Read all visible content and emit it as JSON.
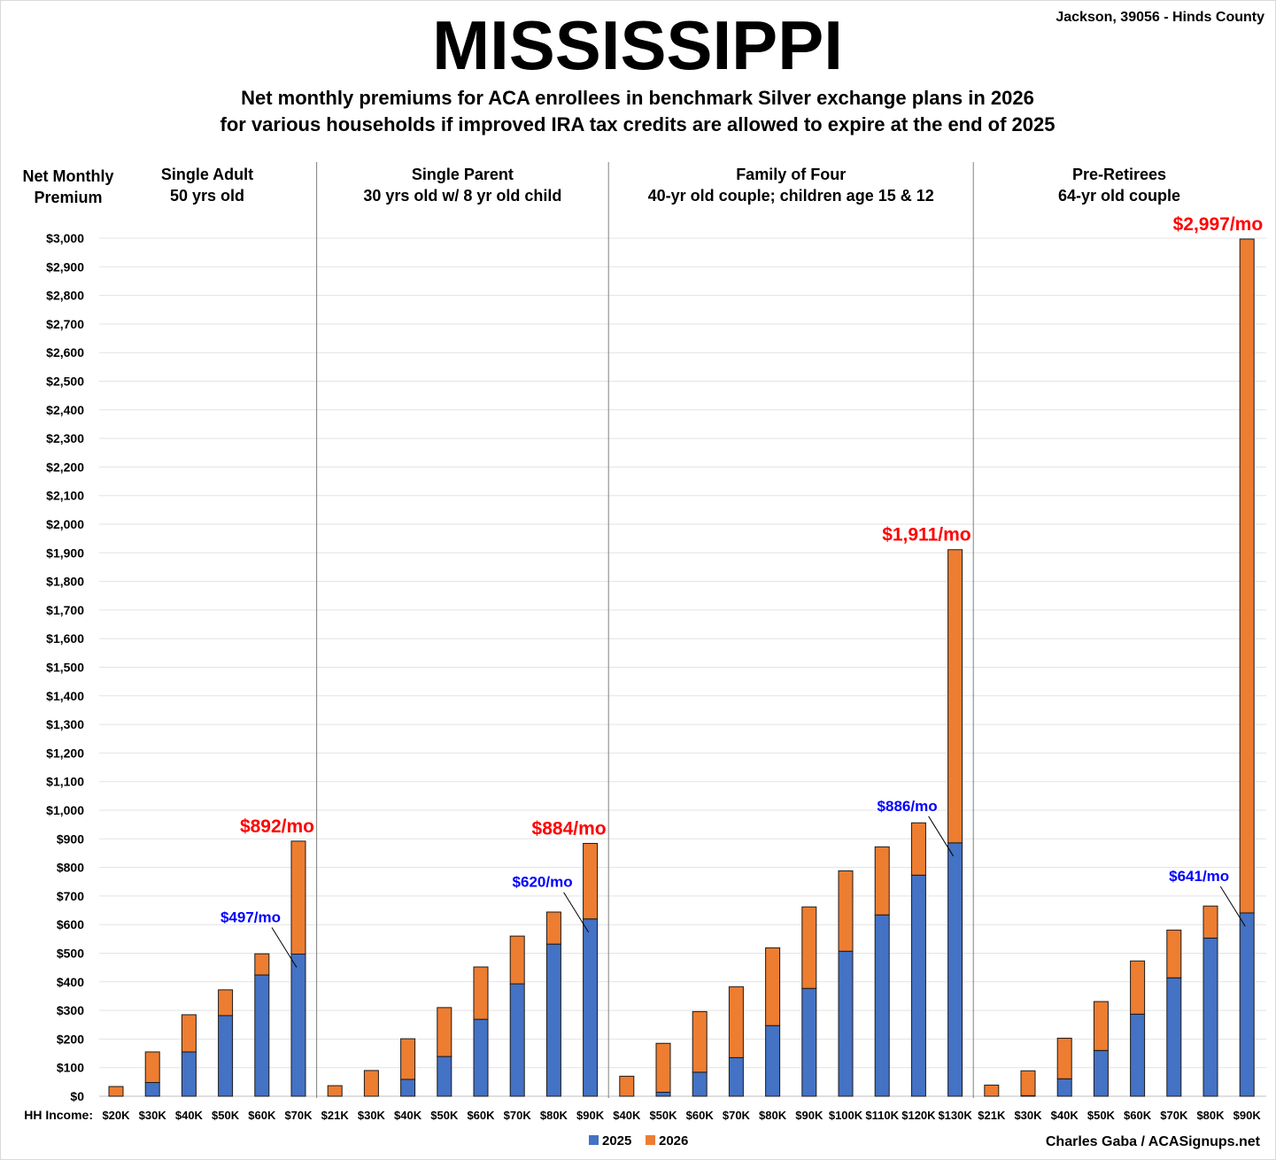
{
  "location": "Jackson, 39056 - Hinds County",
  "chart_data": {
    "type": "bar",
    "stacked": true,
    "title": "MISSISSIPPI",
    "subtitle_lines": [
      "Net monthly premiums for ACA enrollees in benchmark Silver exchange plans in 2026",
      "for various households if improved IRA tax credits are allowed to expire at the end of 2025"
    ],
    "ylabel_lines": [
      "Net Monthly",
      "Premium"
    ],
    "xlabel": "HH Income:",
    "ylim": [
      0,
      3000
    ],
    "ytick_step": 100,
    "grid": true,
    "legend_position": "bottom",
    "colors": {
      "2025": "#4472C4",
      "2026": "#ED7D31",
      "annotation_2026": "#FF0000",
      "annotation_2025": "#0000FF"
    },
    "groups": [
      {
        "title_lines": [
          "Single Adult",
          "50 yrs old"
        ],
        "categories": [
          "$20K",
          "$30K",
          "$40K",
          "$50K",
          "$60K",
          "$70K"
        ],
        "values_2025": [
          0,
          48,
          155,
          282,
          424,
          497
        ],
        "values_2026": [
          34,
          155,
          285,
          372,
          498,
          892
        ]
      },
      {
        "title_lines": [
          "Single Parent",
          "30 yrs old w/ 8 yr old child"
        ],
        "categories": [
          "$21K",
          "$30K",
          "$40K",
          "$50K",
          "$60K",
          "$70K",
          "$80K",
          "$90K"
        ],
        "values_2025": [
          0,
          0,
          59,
          139,
          269,
          393,
          532,
          620
        ],
        "values_2026": [
          37,
          90,
          201,
          310,
          452,
          560,
          644,
          884
        ]
      },
      {
        "title_lines": [
          "Family of Four",
          "40-yr old couple; children age 15 & 12"
        ],
        "categories": [
          "$40K",
          "$50K",
          "$60K",
          "$70K",
          "$80K",
          "$90K",
          "$100K",
          "$110K",
          "$120K",
          "$130K"
        ],
        "values_2025": [
          0,
          14,
          84,
          135,
          247,
          377,
          507,
          634,
          773,
          886
        ],
        "values_2026": [
          70,
          185,
          296,
          383,
          519,
          662,
          788,
          872,
          956,
          1911
        ]
      },
      {
        "title_lines": [
          "Pre-Retirees",
          "64-yr old couple"
        ],
        "categories": [
          "$21K",
          "$30K",
          "$40K",
          "$50K",
          "$60K",
          "$70K",
          "$80K",
          "$90K"
        ],
        "values_2025": [
          0,
          2,
          61,
          160,
          287,
          414,
          553,
          641
        ],
        "values_2026": [
          39,
          89,
          203,
          331,
          473,
          581,
          665,
          2997
        ]
      }
    ],
    "series": [
      {
        "name": "2025"
      },
      {
        "name": "2026"
      }
    ],
    "annotations": [
      {
        "group": 0,
        "category": "$70K",
        "text_2026": "$892/mo",
        "text_2025": "$497/mo"
      },
      {
        "group": 1,
        "category": "$90K",
        "text_2026": "$884/mo",
        "text_2025": "$620/mo"
      },
      {
        "group": 2,
        "category": "$130K",
        "text_2026": "$1,911/mo",
        "text_2025": "$886/mo"
      },
      {
        "group": 3,
        "category": "$90K",
        "text_2026": "$2,997/mo",
        "text_2025": "$641/mo"
      }
    ]
  },
  "source": "Charles Gaba / ACASignups.net"
}
